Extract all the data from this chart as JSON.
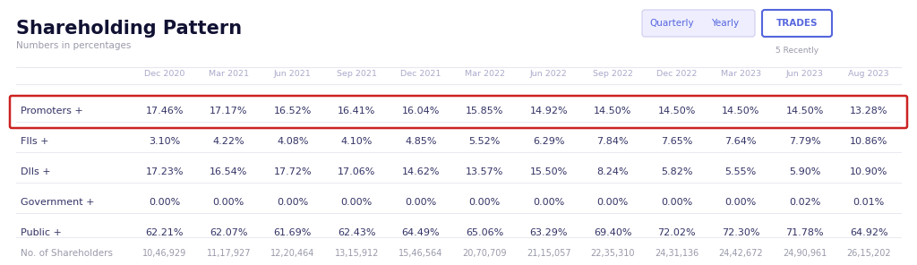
{
  "title": "Shareholding Pattern",
  "subtitle": "Numbers in percentages",
  "buttons": [
    "Quarterly",
    "Yearly",
    "TRADES"
  ],
  "button_sub": "5 Recently",
  "columns": [
    "",
    "Dec 2020",
    "Mar 2021",
    "Jun 2021",
    "Sep 2021",
    "Dec 2021",
    "Mar 2022",
    "Jun 2022",
    "Sep 2022",
    "Dec 2022",
    "Mar 2023",
    "Jun 2023",
    "Aug 2023"
  ],
  "rows": [
    {
      "label": "Promoters +",
      "values": [
        "17.46%",
        "17.17%",
        "16.52%",
        "16.41%",
        "16.04%",
        "15.85%",
        "14.92%",
        "14.50%",
        "14.50%",
        "14.50%",
        "14.50%",
        "13.28%"
      ],
      "highlight": true,
      "label_color": "#333366",
      "value_color": "#333366"
    },
    {
      "label": "FIIs +",
      "values": [
        "3.10%",
        "4.22%",
        "4.08%",
        "4.10%",
        "4.85%",
        "5.52%",
        "6.29%",
        "7.84%",
        "7.65%",
        "7.64%",
        "7.79%",
        "10.86%"
      ],
      "highlight": false,
      "label_color": "#333366",
      "value_color": "#333366"
    },
    {
      "label": "DIIs +",
      "values": [
        "17.23%",
        "16.54%",
        "17.72%",
        "17.06%",
        "14.62%",
        "13.57%",
        "15.50%",
        "8.24%",
        "5.82%",
        "5.55%",
        "5.90%",
        "10.90%"
      ],
      "highlight": false,
      "label_color": "#333366",
      "value_color": "#333366"
    },
    {
      "label": "Government +",
      "values": [
        "0.00%",
        "0.00%",
        "0.00%",
        "0.00%",
        "0.00%",
        "0.00%",
        "0.00%",
        "0.00%",
        "0.00%",
        "0.00%",
        "0.02%",
        "0.01%"
      ],
      "highlight": false,
      "label_color": "#333366",
      "value_color": "#333366"
    },
    {
      "label": "Public +",
      "values": [
        "62.21%",
        "62.07%",
        "61.69%",
        "62.43%",
        "64.49%",
        "65.06%",
        "63.29%",
        "69.40%",
        "72.02%",
        "72.30%",
        "71.78%",
        "64.92%"
      ],
      "highlight": false,
      "label_color": "#333366",
      "value_color": "#333366"
    },
    {
      "label": "No. of Shareholders",
      "values": [
        "10,46,929",
        "11,17,927",
        "12,20,464",
        "13,15,912",
        "15,46,564",
        "20,70,709",
        "21,15,057",
        "22,35,310",
        "24,31,136",
        "24,42,672",
        "24,90,961",
        "26,15,202"
      ],
      "highlight": false,
      "label_color": "#999aaa",
      "value_color": "#999aaa"
    }
  ],
  "bg_color": "#ffffff",
  "header_text_color": "#aaaacc",
  "highlight_border_color": "#cc2222",
  "separator_color": "#e8e8f0",
  "button_quarterly_bg": "#eeeeff",
  "button_qy_border": "#ccccee",
  "button_trades_border": "#5566dd",
  "button_color": "#5566dd"
}
